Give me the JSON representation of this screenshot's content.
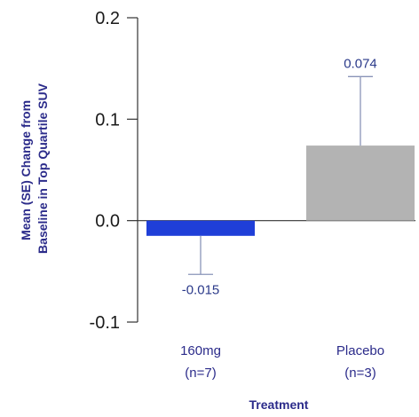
{
  "chart_data": {
    "type": "bar",
    "title": "",
    "xlabel": "Treatment",
    "ylabel_lines": [
      "Mean (SE) Change from",
      "Baseline in Top Quartile SUV"
    ],
    "ylim": [
      -0.1,
      0.2
    ],
    "yticks": [
      -0.1,
      0.0,
      0.1,
      0.2
    ],
    "ytick_labels": [
      "-0.1",
      "0.0",
      "0.1",
      "0.2"
    ],
    "grid": false,
    "categories": [
      {
        "line1": "160mg",
        "line2": "(n=7)"
      },
      {
        "line1": "Placebo",
        "line2": "(n=3)"
      }
    ],
    "values": [
      -0.015,
      0.074
    ],
    "value_labels": [
      "-0.015",
      "0.074"
    ],
    "se": [
      0.038,
      0.068
    ],
    "colors": [
      "#1f3fd8",
      "#b3b3b3"
    ],
    "errorbar_color": "#8a94b8"
  }
}
